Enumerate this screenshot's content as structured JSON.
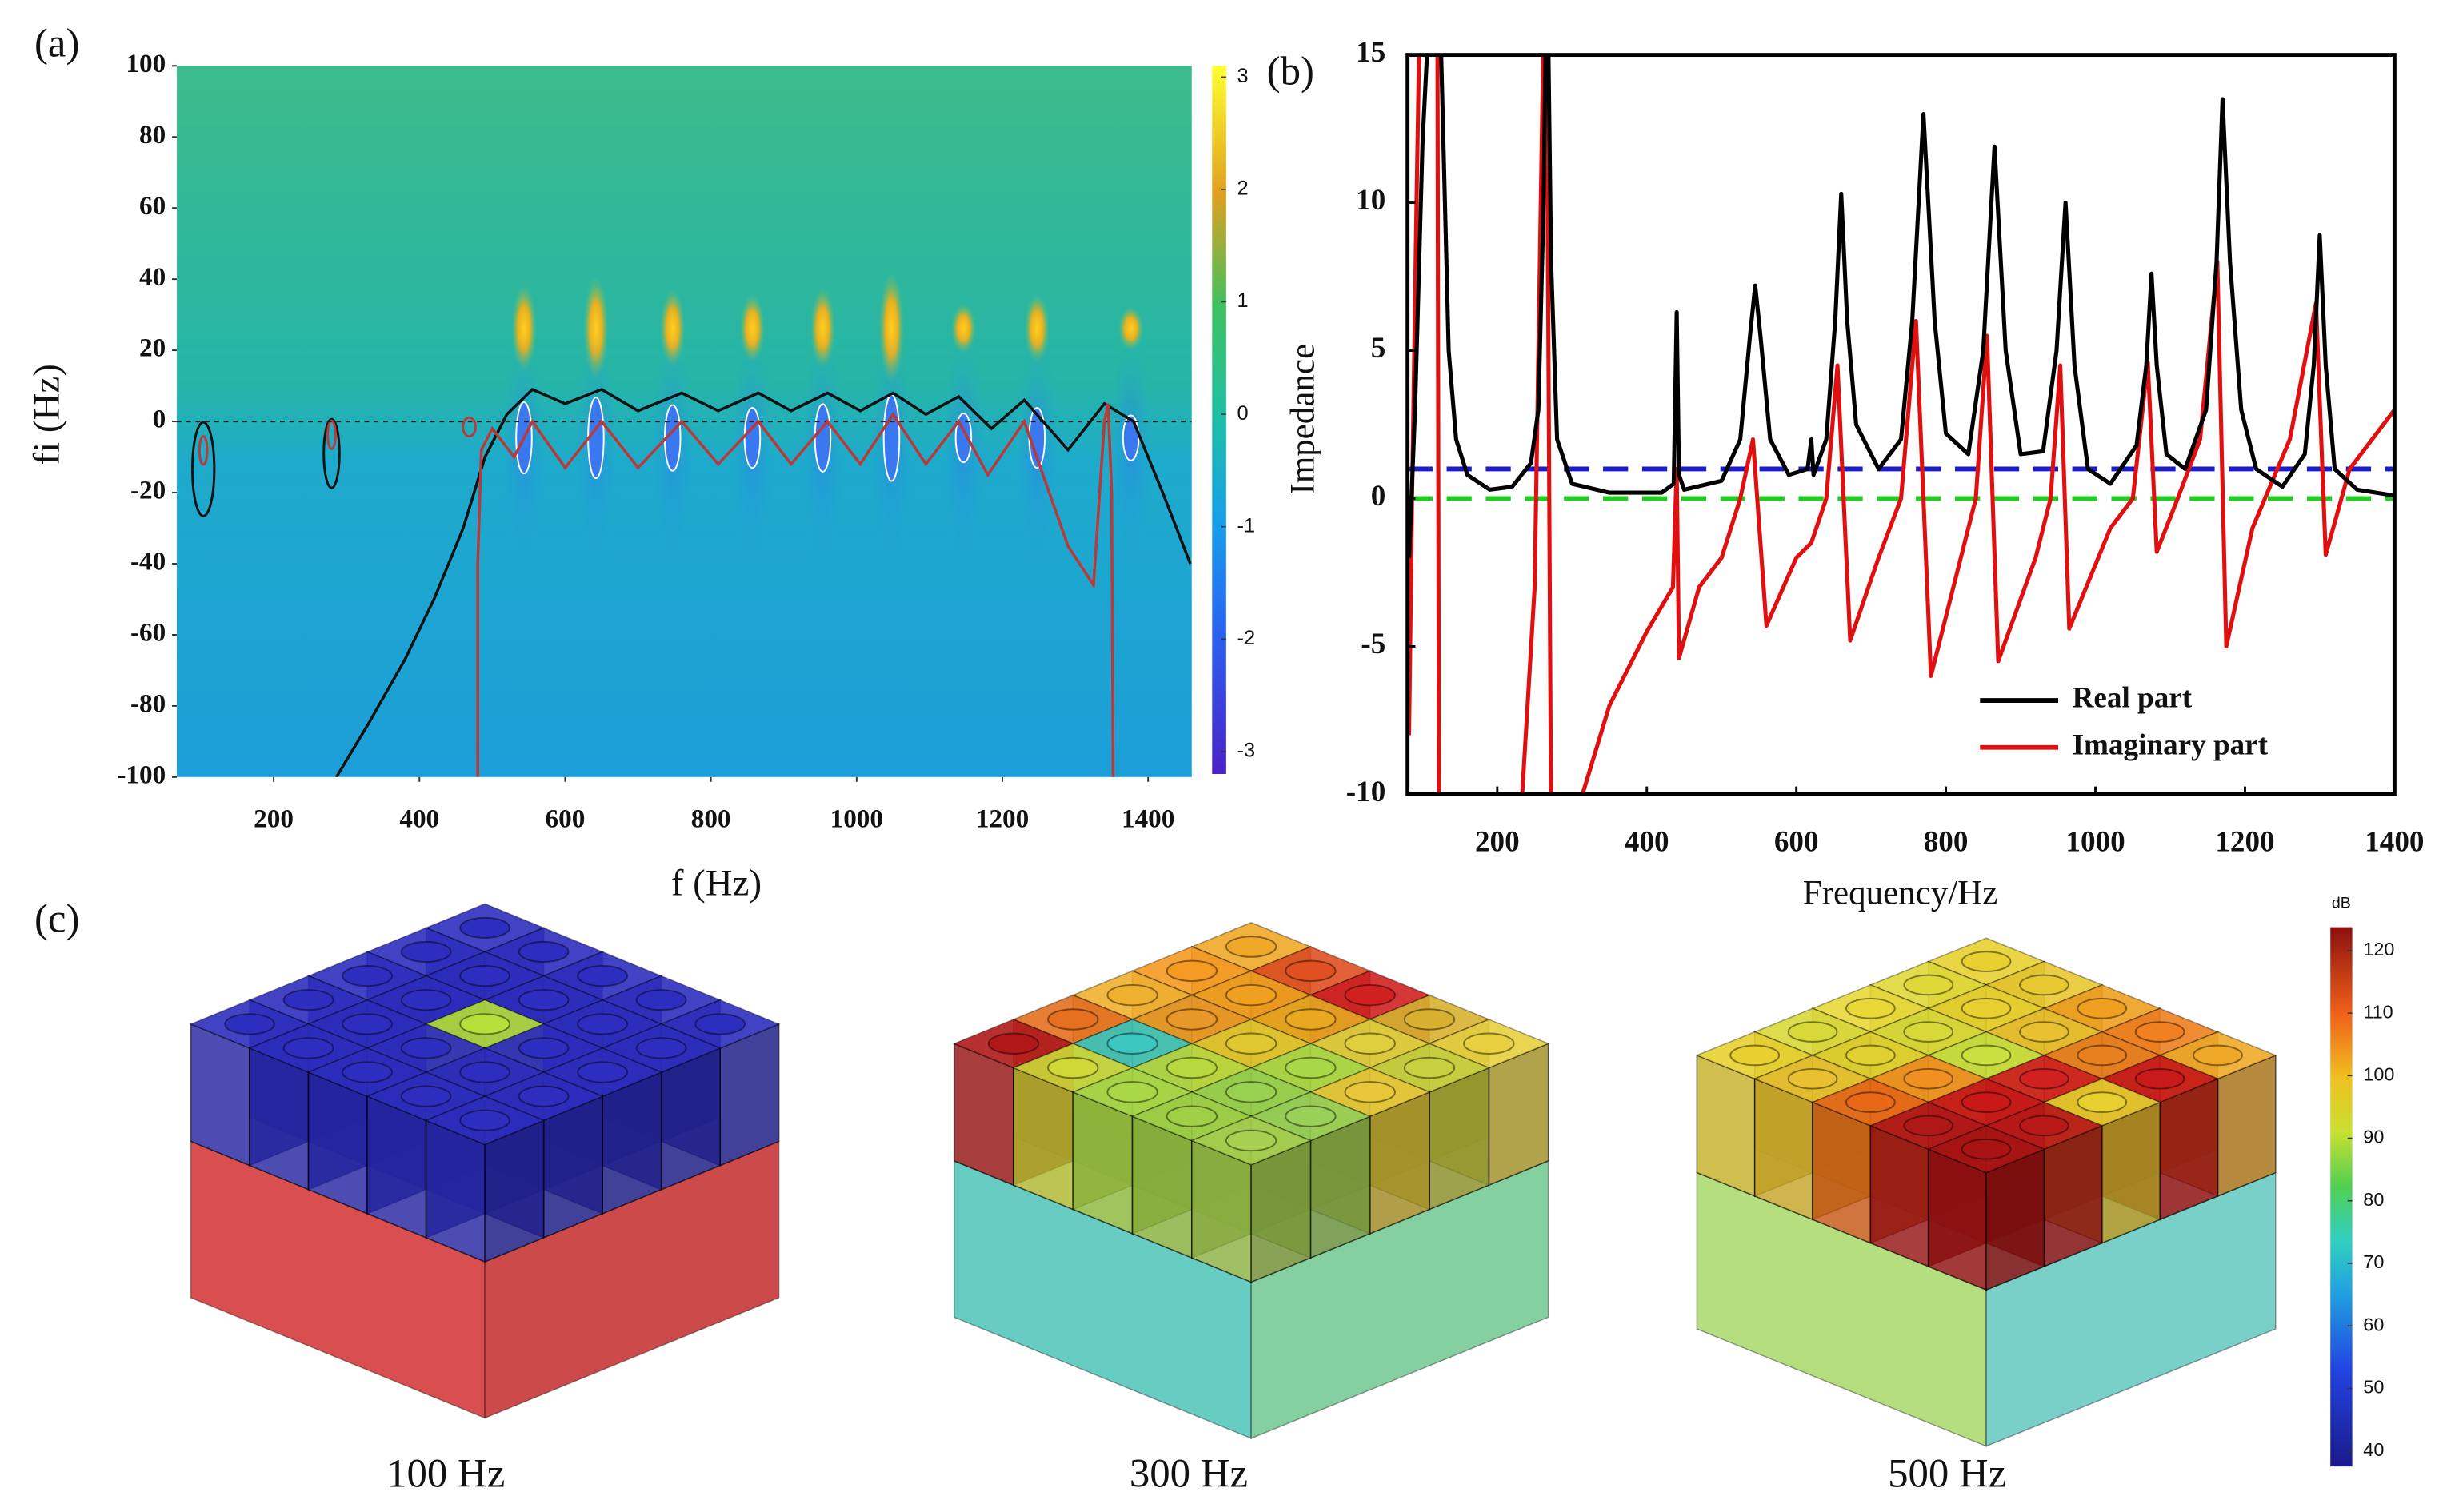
{
  "chart_data": [
    {
      "type": "heatmap",
      "label": "(a)",
      "xlabel": "f (Hz)",
      "ylabel": "fi (Hz)",
      "xlim": [
        67,
        1460
      ],
      "xticks": [
        200,
        400,
        600,
        800,
        1000,
        1200,
        1400
      ],
      "ylim": [
        -100,
        100
      ],
      "yticks": [
        -100,
        -80,
        -60,
        -40,
        -20,
        0,
        20,
        40,
        60,
        80,
        100
      ],
      "colorbar": {
        "zlim": [
          -3.2,
          3.1
        ],
        "zticks": [
          -3,
          -2,
          -1,
          0,
          1,
          2,
          3
        ]
      },
      "reference_lines": [
        {
          "value": 0,
          "color": "#222222",
          "dash": true
        }
      ],
      "contours": [
        {
          "color": "#111111",
          "x": [
            286,
            330,
            380,
            420,
            460,
            490,
            520,
            555,
            600,
            650,
            700,
            760,
            810,
            865,
            910,
            960,
            1005,
            1050,
            1095,
            1140,
            1185,
            1230,
            1290,
            1340,
            1380,
            1420,
            1458
          ],
          "values": [
            -100,
            -85,
            -67,
            -50,
            -30,
            -10,
            2,
            9,
            5,
            9,
            3,
            8,
            3,
            8,
            3,
            8,
            3,
            8,
            2,
            7,
            -2,
            6,
            -8,
            5,
            0,
            -20,
            -40
          ]
        },
        {
          "color": "#b83a3a",
          "x": [
            480,
            480,
            485,
            500,
            530,
            555,
            600,
            650,
            700,
            760,
            810,
            865,
            910,
            960,
            1005,
            1050,
            1095,
            1140,
            1180,
            1230,
            1290,
            1325,
            1340,
            1345,
            1350,
            1352
          ],
          "values": [
            -100,
            -40,
            -8,
            -2,
            -10,
            0,
            -13,
            0,
            -13,
            0,
            -12,
            0,
            -12,
            0,
            -12,
            2,
            -12,
            0,
            -15,
            0,
            -35,
            -46,
            0,
            5,
            -20,
            -100
          ]
        }
      ]
    },
    {
      "type": "line",
      "label": "(b)",
      "xlabel": "Frequency/Hz",
      "ylabel": "Impedance",
      "xlim": [
        80,
        1400
      ],
      "xticks": [
        200,
        400,
        600,
        800,
        1000,
        1200,
        1400
      ],
      "ylim": [
        -10,
        15
      ],
      "yticks": [
        -10,
        -5,
        0,
        5,
        10,
        15
      ],
      "legend": "lower right",
      "reference_lines": [
        {
          "value": 1,
          "color": "#1a1ad0",
          "dash": true
        },
        {
          "value": 0,
          "color": "#22cc22",
          "dash": true
        }
      ],
      "series": [
        {
          "name": "Real part",
          "color": "#000000",
          "x": [
            82,
            90,
            100,
            108,
            112,
            116,
            120,
            124,
            128,
            135,
            145,
            160,
            190,
            220,
            245,
            255,
            262,
            265,
            268,
            272,
            280,
            300,
            350,
            420,
            436,
            440,
            443,
            450,
            500,
            525,
            538,
            545,
            552,
            565,
            590,
            615,
            620,
            623,
            640,
            652,
            660,
            668,
            680,
            710,
            740,
            755,
            770,
            785,
            800,
            830,
            850,
            865,
            880,
            900,
            930,
            948,
            960,
            972,
            990,
            1020,
            1055,
            1068,
            1075,
            1082,
            1095,
            1120,
            1148,
            1162,
            1170,
            1180,
            1195,
            1215,
            1250,
            1280,
            1292,
            1300,
            1308,
            1320,
            1350,
            1400
          ],
          "values": [
            -2,
            3,
            12,
            16,
            16,
            16,
            16,
            16,
            12,
            5,
            2,
            0.8,
            0.3,
            0.4,
            1.2,
            3,
            10,
            16,
            16,
            8,
            2,
            0.5,
            0.2,
            0.2,
            0.5,
            6.3,
            0.8,
            0.3,
            0.6,
            2,
            5.5,
            7.2,
            5.5,
            2,
            0.8,
            1,
            2,
            0.8,
            2,
            6,
            10.3,
            6,
            2.5,
            1,
            2,
            6,
            13,
            6,
            2.2,
            1.5,
            5,
            11.9,
            5,
            1.5,
            1.6,
            5,
            10,
            4.5,
            1,
            0.5,
            1.8,
            4.5,
            7.6,
            4.5,
            1.5,
            1,
            3,
            8,
            13.5,
            8,
            3,
            1,
            0.4,
            1.5,
            4.5,
            8.9,
            4.5,
            1,
            0.3,
            0.1
          ]
        },
        {
          "name": "Imaginary part",
          "color": "#e01010",
          "x": [
            82,
            86,
            92,
            96,
            115,
            120,
            122,
            231,
            250,
            262,
            266,
            272,
            302,
            350,
            400,
            435,
            440,
            443,
            470,
            500,
            525,
            542,
            560,
            600,
            620,
            640,
            655,
            672,
            710,
            740,
            760,
            780,
            820,
            840,
            855,
            870,
            920,
            940,
            953,
            965,
            1020,
            1050,
            1070,
            1082,
            1110,
            1140,
            1163,
            1175,
            1210,
            1260,
            1295,
            1308,
            1340,
            1400
          ],
          "values": [
            -8,
            0,
            10,
            16,
            16,
            16,
            -11,
            -11,
            -3,
            16,
            16,
            -11,
            -11,
            -7,
            -4.5,
            -3,
            1,
            -5.4,
            -3,
            -2,
            0,
            2,
            -4.3,
            -2,
            -1.5,
            0,
            4.5,
            -4.8,
            -2,
            0,
            6,
            -6,
            -2,
            0,
            5.5,
            -5.5,
            -2,
            0,
            4.5,
            -4.4,
            -1,
            0,
            4.6,
            -1.8,
            0,
            2,
            8,
            -5,
            -1,
            2,
            6.6,
            -1.9,
            1,
            3
          ]
        }
      ]
    },
    {
      "type": "3d-render",
      "label": "(c)",
      "panels": [
        "100 Hz",
        "300 Hz",
        "500 Hz"
      ],
      "colorbar": {
        "title": "dB",
        "zlim": [
          37.5,
          123.75
        ],
        "zticks": [
          40,
          50,
          60,
          70,
          80,
          90,
          100,
          110,
          120
        ]
      }
    }
  ]
}
